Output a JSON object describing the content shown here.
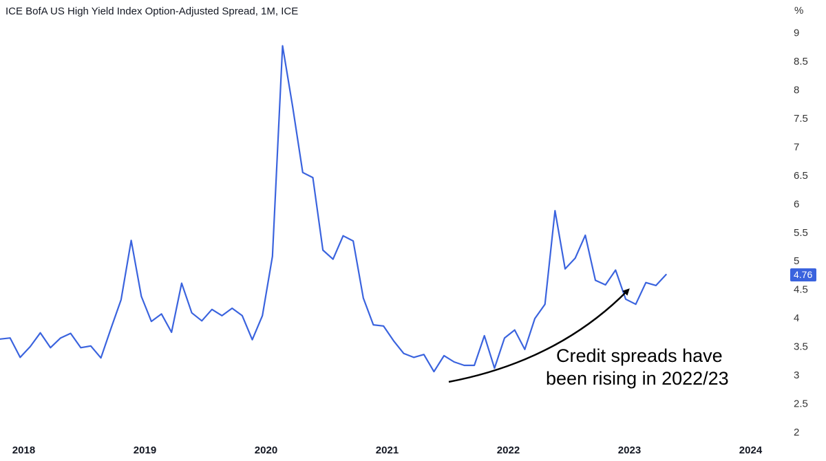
{
  "chart_data": {
    "type": "line",
    "title": "ICE BofA US High Yield Index Option-Adjusted Spread, 1M, ICE",
    "unit_label": "%",
    "ylim": [
      2,
      9
    ],
    "yticks": [
      2,
      2.5,
      3,
      3.5,
      4,
      4.5,
      5,
      5.5,
      6,
      6.5,
      7,
      7.5,
      8,
      8.5,
      9
    ],
    "xlim": [
      2017.95,
      2024.2
    ],
    "xticks": [
      {
        "value": 2018,
        "label": "2018"
      },
      {
        "value": 2019,
        "label": "2019"
      },
      {
        "value": 2020,
        "label": "2020"
      },
      {
        "value": 2021,
        "label": "2021"
      },
      {
        "value": 2022,
        "label": "2022"
      },
      {
        "value": 2023,
        "label": "2023"
      },
      {
        "value": 2024,
        "label": "2024"
      }
    ],
    "line_color": "#3a63de",
    "series": [
      {
        "name": "ICE BofA US High Yield Index Option-Adjusted Spread",
        "start": 2017.95,
        "step": 0.0833,
        "values": [
          3.63,
          3.65,
          3.31,
          3.5,
          3.74,
          3.48,
          3.65,
          3.73,
          3.48,
          3.51,
          3.3,
          3.82,
          4.32,
          5.36,
          4.38,
          3.94,
          4.07,
          3.75,
          4.61,
          4.09,
          3.95,
          4.15,
          4.04,
          4.17,
          4.04,
          3.62,
          4.04,
          5.08,
          8.77,
          7.7,
          6.55,
          6.46,
          5.19,
          5.03,
          5.44,
          5.35,
          4.35,
          3.88,
          3.86,
          3.6,
          3.38,
          3.31,
          3.36,
          3.06,
          3.34,
          3.23,
          3.17,
          3.17,
          3.69,
          3.12,
          3.65,
          3.79,
          3.45,
          3.99,
          4.24,
          5.88,
          4.86,
          5.05,
          5.45,
          4.66,
          4.58,
          4.84,
          4.33,
          4.24,
          4.62,
          4.57,
          4.76
        ]
      }
    ],
    "last_value_label": "4.76",
    "annotation": {
      "lines": [
        "Credit spreads have",
        "been rising in 2022/23"
      ]
    }
  }
}
